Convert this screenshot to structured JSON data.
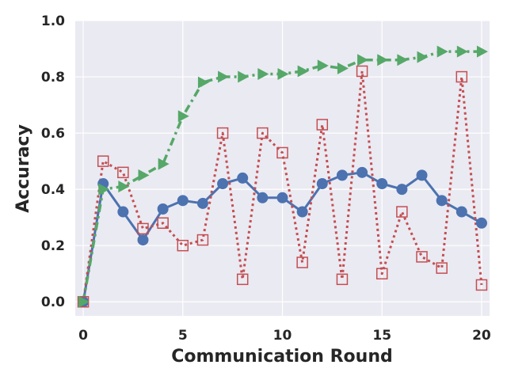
{
  "chart_data": {
    "type": "line",
    "xlabel": "Communication Round",
    "ylabel": "Accuracy",
    "xlim": [
      -0.4,
      20.4
    ],
    "ylim": [
      -0.05,
      1.0
    ],
    "xticks": [
      0,
      5,
      10,
      15,
      20
    ],
    "yticks": [
      0.0,
      0.2,
      0.4,
      0.6,
      0.8,
      1.0
    ],
    "ytick_labels": [
      "0.0",
      "0.2",
      "0.4",
      "0.6",
      "0.8",
      "1.0"
    ],
    "grid": true,
    "background": "#eaeaf2",
    "x": [
      0,
      1,
      2,
      3,
      4,
      5,
      6,
      7,
      8,
      9,
      10,
      11,
      12,
      13,
      14,
      15,
      16,
      17,
      18,
      19,
      20
    ],
    "series": [
      {
        "style": "solid-circle",
        "color": "#4c72b0",
        "values": [
          0.0,
          0.42,
          0.32,
          0.22,
          0.33,
          0.36,
          0.35,
          0.42,
          0.44,
          0.37,
          0.37,
          0.32,
          0.42,
          0.45,
          0.46,
          0.42,
          0.4,
          0.45,
          0.36,
          0.32,
          0.28
        ]
      },
      {
        "style": "dotted-square",
        "color": "#c44e52",
        "values": [
          0.0,
          0.5,
          0.46,
          0.26,
          0.28,
          0.2,
          0.22,
          0.6,
          0.08,
          0.6,
          0.53,
          0.14,
          0.63,
          0.08,
          0.82,
          0.1,
          0.32,
          0.16,
          0.12,
          0.8,
          0.06
        ]
      },
      {
        "style": "dashdot-triangle",
        "color": "#55a868",
        "values": [
          0.0,
          0.4,
          0.41,
          0.45,
          0.49,
          0.66,
          0.78,
          0.8,
          0.8,
          0.81,
          0.81,
          0.82,
          0.84,
          0.83,
          0.86,
          0.86,
          0.86,
          0.87,
          0.89,
          0.89,
          0.89
        ]
      }
    ]
  }
}
